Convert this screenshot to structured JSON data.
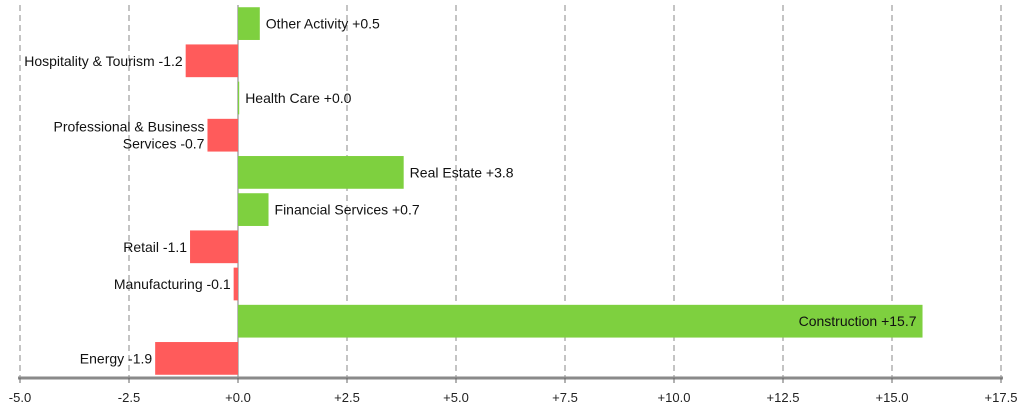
{
  "chart_data": {
    "type": "bar",
    "orientation": "horizontal",
    "categories": [
      "Other Activity",
      "Hospitality & Tourism",
      "Health Care",
      "Professional & Business Services",
      "Real Estate",
      "Financial Services",
      "Retail",
      "Manufacturing",
      "Construction",
      "Energy"
    ],
    "values": [
      0.5,
      -1.2,
      0.0,
      -0.7,
      3.8,
      0.7,
      -1.1,
      -0.1,
      15.7,
      -1.9
    ],
    "labels": [
      [
        "Other Activity +0.5"
      ],
      [
        "Hospitality & Tourism -1.2"
      ],
      [
        "Health Care +0.0"
      ],
      [
        "Professional & Business",
        "Services -0.7"
      ],
      [
        "Real Estate +3.8"
      ],
      [
        "Financial Services +0.7"
      ],
      [
        "Retail -1.1"
      ],
      [
        "Manufacturing -0.1"
      ],
      [
        "Construction +15.7"
      ],
      [
        "Energy -1.9"
      ]
    ],
    "xlim": [
      -5.0,
      17.5
    ],
    "xticks": [
      -5.0,
      -2.5,
      0.0,
      2.5,
      5.0,
      7.5,
      10.0,
      12.5,
      15.0,
      17.5
    ],
    "xtick_labels": [
      "-5.0",
      "-2.5",
      "+0.0",
      "+2.5",
      "+5.0",
      "+7.5",
      "+10.0",
      "+12.5",
      "+15.0",
      "+17.5"
    ],
    "grid": "vertical dashed",
    "colors": {
      "positive": "#7ed03f",
      "negative": "#ff5b5b",
      "grid": "#888888",
      "axis": "#8a8a8a"
    }
  }
}
